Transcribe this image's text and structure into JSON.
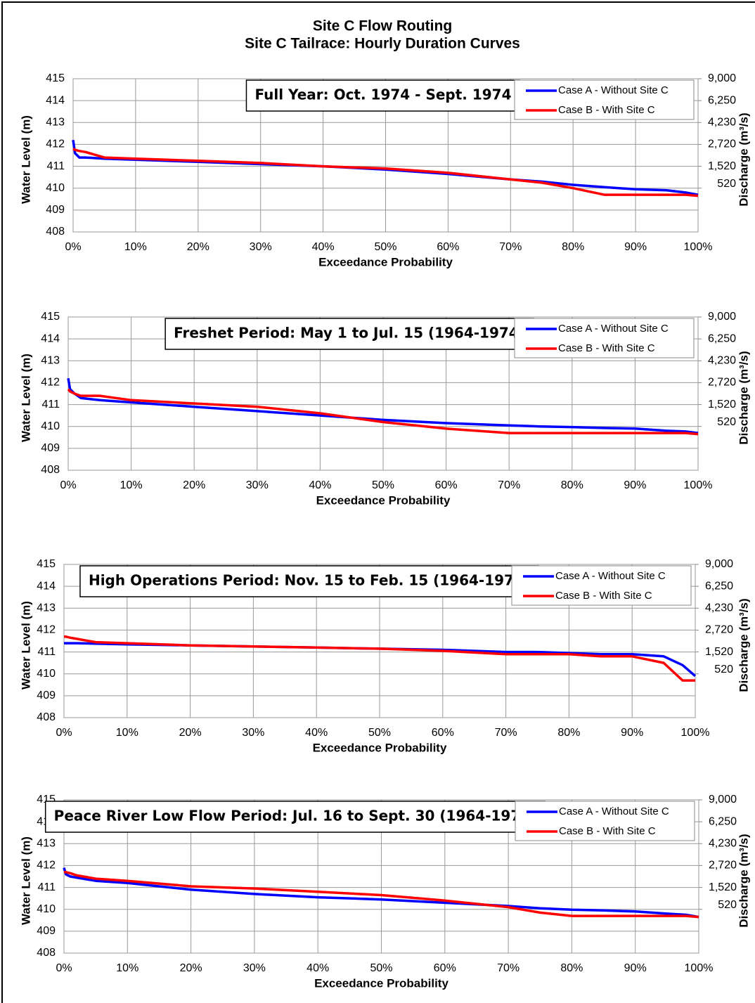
{
  "title": "Site C Flow Routing",
  "subtitle": "Site C Tailrace: Hourly Duration Curves",
  "chart_data": [
    {
      "type": "line",
      "annotation": "Full Year: Oct. 1974 - Sept. 1974",
      "x": [
        0,
        0.3,
        1,
        2,
        5,
        10,
        20,
        30,
        40,
        50,
        60,
        70,
        75,
        80,
        85,
        90,
        95,
        98,
        100
      ],
      "series": [
        {
          "name": "Case A - Without Site C",
          "color": "#0000ff",
          "values": [
            412.2,
            411.6,
            411.4,
            411.4,
            411.35,
            411.3,
            411.2,
            411.1,
            411.0,
            410.85,
            410.65,
            410.4,
            410.3,
            410.15,
            410.05,
            409.95,
            409.9,
            409.8,
            409.7
          ]
        },
        {
          "name": "Case B - With Site C",
          "color": "#ff0000",
          "values": [
            411.8,
            411.75,
            411.7,
            411.65,
            411.4,
            411.35,
            411.25,
            411.15,
            411.0,
            410.9,
            410.7,
            410.4,
            410.25,
            410.0,
            409.7,
            409.7,
            409.7,
            409.7,
            409.65
          ]
        }
      ],
      "xlabel": "Exceedance Probability",
      "ylabel": "Water Level (m)",
      "y2label": "Discharge (m³/s)",
      "xlim": [
        0,
        100
      ],
      "xticks": [
        {
          "value": 0,
          "label": "0%"
        },
        {
          "value": 10,
          "label": "10%"
        },
        {
          "value": 20,
          "label": "20%"
        },
        {
          "value": 30,
          "label": "30%"
        },
        {
          "value": 40,
          "label": "40%"
        },
        {
          "value": 50,
          "label": "50%"
        },
        {
          "value": 60,
          "label": "60%"
        },
        {
          "value": 70,
          "label": "70%"
        },
        {
          "value": 80,
          "label": "80%"
        },
        {
          "value": 90,
          "label": "90%"
        },
        {
          "value": 100,
          "label": "100%"
        }
      ],
      "ylim": [
        408,
        415
      ],
      "yticks": [
        408,
        409,
        410,
        411,
        412,
        413,
        414,
        415
      ],
      "y2ticks": [
        {
          "value": 9000,
          "label": "9,000"
        },
        {
          "value": 6250,
          "label": "6,250"
        },
        {
          "value": 4230,
          "label": "4,230"
        },
        {
          "value": 2720,
          "label": "2,720"
        },
        {
          "value": 1520,
          "label": "1,520"
        },
        {
          "value": 520,
          "label": "520"
        }
      ],
      "grid": true,
      "legend": "upper right"
    },
    {
      "type": "line",
      "annotation": "Freshet Period: May 1 to Jul. 15 (1964-1974)",
      "x": [
        0,
        0.3,
        1,
        2,
        5,
        10,
        20,
        30,
        40,
        50,
        60,
        70,
        75,
        80,
        85,
        90,
        95,
        98,
        100
      ],
      "series": [
        {
          "name": "Case A - Without Site C",
          "color": "#0000ff",
          "values": [
            412.2,
            411.7,
            411.5,
            411.3,
            411.2,
            411.1,
            410.9,
            410.7,
            410.5,
            410.3,
            410.15,
            410.05,
            410.0,
            409.97,
            409.93,
            409.9,
            409.8,
            409.77,
            409.7
          ]
        },
        {
          "name": "Case B - With Site C",
          "color": "#ff0000",
          "values": [
            411.7,
            411.6,
            411.5,
            411.4,
            411.4,
            411.2,
            411.05,
            410.9,
            410.6,
            410.2,
            409.9,
            409.7,
            409.7,
            409.7,
            409.7,
            409.7,
            409.7,
            409.7,
            409.65
          ]
        }
      ],
      "xlabel": "Exceedance Probability",
      "ylabel": "Water Level (m)",
      "y2label": "Discharge (m³/s)",
      "xlim": [
        0,
        100
      ],
      "xticks": [
        {
          "value": 0,
          "label": "0%"
        },
        {
          "value": 10,
          "label": "10%"
        },
        {
          "value": 20,
          "label": "20%"
        },
        {
          "value": 30,
          "label": "30%"
        },
        {
          "value": 40,
          "label": "40%"
        },
        {
          "value": 50,
          "label": "50%"
        },
        {
          "value": 60,
          "label": "60%"
        },
        {
          "value": 70,
          "label": "70%"
        },
        {
          "value": 80,
          "label": "80%"
        },
        {
          "value": 90,
          "label": "90%"
        },
        {
          "value": 100,
          "label": "100%"
        }
      ],
      "ylim": [
        408,
        415
      ],
      "yticks": [
        408,
        409,
        410,
        411,
        412,
        413,
        414,
        415
      ],
      "y2ticks": [
        {
          "value": 9000,
          "label": "9,000"
        },
        {
          "value": 6250,
          "label": "6,250"
        },
        {
          "value": 4230,
          "label": "4,230"
        },
        {
          "value": 2720,
          "label": "2,720"
        },
        {
          "value": 1520,
          "label": "1,520"
        },
        {
          "value": 520,
          "label": "520"
        }
      ],
      "grid": true,
      "legend": "upper right"
    },
    {
      "type": "line",
      "annotation": "High Operations Period: Nov. 15 to Feb. 15 (1964-1974)",
      "x": [
        0,
        0.3,
        1,
        2,
        5,
        10,
        20,
        30,
        40,
        50,
        60,
        70,
        75,
        80,
        85,
        90,
        95,
        98,
        100
      ],
      "series": [
        {
          "name": "Case A - Without Site C",
          "color": "#0000ff",
          "values": [
            411.4,
            411.4,
            411.4,
            411.4,
            411.38,
            411.35,
            411.3,
            411.25,
            411.2,
            411.15,
            411.1,
            411.0,
            411.0,
            410.95,
            410.9,
            410.9,
            410.8,
            410.4,
            409.9
          ]
        },
        {
          "name": "Case B - With Site C",
          "color": "#ff0000",
          "values": [
            411.7,
            411.7,
            411.65,
            411.6,
            411.45,
            411.4,
            411.3,
            411.25,
            411.2,
            411.15,
            411.05,
            410.9,
            410.9,
            410.9,
            410.8,
            410.8,
            410.5,
            409.7,
            409.7
          ]
        }
      ],
      "xlabel": "Exceedance Probability",
      "ylabel": "Water Level (m)",
      "y2label": "Discharge (m³/s)",
      "xlim": [
        0,
        100
      ],
      "xticks": [
        {
          "value": 0,
          "label": "0%"
        },
        {
          "value": 10,
          "label": "10%"
        },
        {
          "value": 20,
          "label": "20%"
        },
        {
          "value": 30,
          "label": "30%"
        },
        {
          "value": 40,
          "label": "40%"
        },
        {
          "value": 50,
          "label": "50%"
        },
        {
          "value": 60,
          "label": "60%"
        },
        {
          "value": 70,
          "label": "70%"
        },
        {
          "value": 80,
          "label": "80%"
        },
        {
          "value": 90,
          "label": "90%"
        },
        {
          "value": 100,
          "label": "100%"
        }
      ],
      "ylim": [
        408,
        415
      ],
      "yticks": [
        408,
        409,
        410,
        411,
        412,
        413,
        414,
        415
      ],
      "y2ticks": [
        {
          "value": 9000,
          "label": "9,000"
        },
        {
          "value": 6250,
          "label": "6,250"
        },
        {
          "value": 4230,
          "label": "4,230"
        },
        {
          "value": 2720,
          "label": "2,720"
        },
        {
          "value": 1520,
          "label": "1,520"
        },
        {
          "value": 520,
          "label": "520"
        }
      ],
      "grid": true,
      "legend": "upper right"
    },
    {
      "type": "line",
      "annotation": "Peace River Low Flow Period: Jul. 16 to Sept. 30 (1964-1974)",
      "x": [
        0,
        0.3,
        1,
        2,
        5,
        10,
        20,
        30,
        40,
        50,
        60,
        70,
        75,
        80,
        85,
        90,
        95,
        98,
        100
      ],
      "series": [
        {
          "name": "Case A - Without Site C",
          "color": "#0000ff",
          "values": [
            411.9,
            411.6,
            411.5,
            411.45,
            411.3,
            411.2,
            410.9,
            410.7,
            410.55,
            410.45,
            410.3,
            410.15,
            410.05,
            409.98,
            409.95,
            409.9,
            409.8,
            409.75,
            409.65
          ]
        },
        {
          "name": "Case B - With Site C",
          "color": "#ff0000",
          "values": [
            411.7,
            411.7,
            411.65,
            411.55,
            411.4,
            411.3,
            411.05,
            410.95,
            410.8,
            410.65,
            410.4,
            410.1,
            409.85,
            409.7,
            409.7,
            409.7,
            409.7,
            409.7,
            409.65
          ]
        }
      ],
      "xlabel": "Exceedance Probability",
      "ylabel": "Water Level (m)",
      "y2label": "Discharge (m³/s)",
      "xlim": [
        0,
        100
      ],
      "xticks": [
        {
          "value": 0,
          "label": "0%"
        },
        {
          "value": 10,
          "label": "10%"
        },
        {
          "value": 20,
          "label": "20%"
        },
        {
          "value": 30,
          "label": "30%"
        },
        {
          "value": 40,
          "label": "40%"
        },
        {
          "value": 50,
          "label": "50%"
        },
        {
          "value": 60,
          "label": "60%"
        },
        {
          "value": 70,
          "label": "70%"
        },
        {
          "value": 80,
          "label": "80%"
        },
        {
          "value": 90,
          "label": "90%"
        },
        {
          "value": 100,
          "label": "100%"
        }
      ],
      "ylim": [
        408,
        415
      ],
      "yticks": [
        408,
        409,
        410,
        411,
        412,
        413,
        414,
        415
      ],
      "y2ticks": [
        {
          "value": 9000,
          "label": "9,000"
        },
        {
          "value": 6250,
          "label": "6,250"
        },
        {
          "value": 4230,
          "label": "4,230"
        },
        {
          "value": 2720,
          "label": "2,720"
        },
        {
          "value": 1520,
          "label": "1,520"
        },
        {
          "value": 520,
          "label": "520"
        }
      ],
      "grid": true,
      "legend": "upper right"
    }
  ]
}
